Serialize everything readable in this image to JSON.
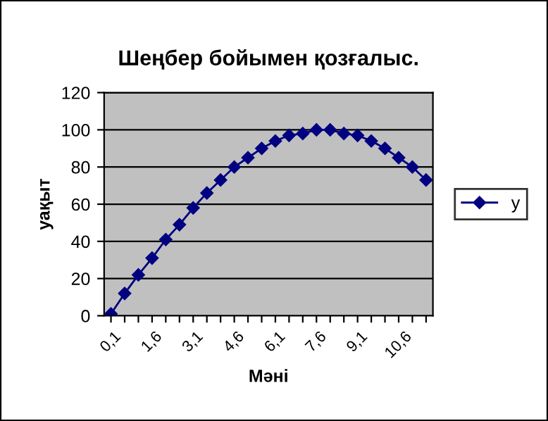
{
  "chart_data": {
    "type": "line",
    "title": "Шеңбер бойымен қозғалыс.",
    "xlabel": "Мәні",
    "ylabel": "уақыт",
    "categories": [
      "0,1",
      null,
      null,
      "1,6",
      null,
      null,
      "3,1",
      null,
      null,
      "4,6",
      null,
      null,
      "6,1",
      null,
      null,
      "7,6",
      null,
      null,
      "9,1",
      null,
      null,
      "10,6",
      null,
      null
    ],
    "series": [
      {
        "name": "y",
        "color": "#000080",
        "values": [
          1,
          12,
          22,
          31,
          41,
          49,
          58,
          66,
          73,
          80,
          85,
          90,
          94,
          97,
          98,
          100,
          100,
          98,
          97,
          94,
          90,
          85,
          80,
          73
        ]
      }
    ],
    "ylim": [
      0,
      120
    ],
    "yticks": [
      0,
      20,
      40,
      60,
      80,
      100,
      120
    ],
    "grid": "y",
    "legend": "right",
    "marker": "diamond",
    "line_style": "solid"
  }
}
